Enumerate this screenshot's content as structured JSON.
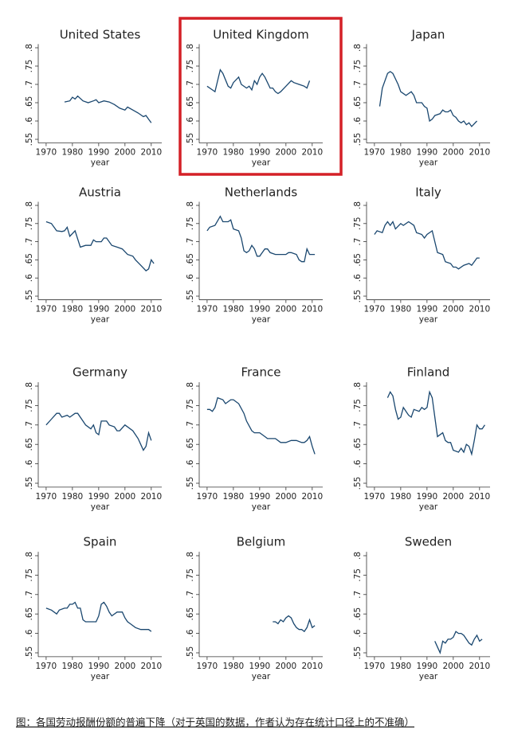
{
  "chart_data": [
    {
      "type": "line",
      "title": "United States",
      "xlabel": "year",
      "color": "#1a476f",
      "x": [
        1977,
        1979,
        1980,
        1981,
        1982,
        1984,
        1986,
        1988,
        1989,
        1990,
        1992,
        1994,
        1996,
        1998,
        2000,
        2001,
        2003,
        2005,
        2007,
        2008,
        2009,
        2010
      ],
      "values": [
        0.652,
        0.655,
        0.665,
        0.66,
        0.668,
        0.655,
        0.65,
        0.655,
        0.658,
        0.65,
        0.655,
        0.652,
        0.645,
        0.635,
        0.63,
        0.638,
        0.63,
        0.622,
        0.612,
        0.615,
        0.605,
        0.595
      ],
      "xlim": [
        1967,
        2014
      ],
      "ylim": [
        0.54,
        0.81
      ],
      "xticks": [
        1970,
        1980,
        1990,
        2000,
        2010
      ],
      "yticks": [
        {
          "value": 0.55,
          "label": ".55"
        },
        {
          "value": 0.6,
          "label": ".6"
        },
        {
          "value": 0.65,
          "label": ".65"
        },
        {
          "value": 0.7,
          "label": ".7"
        },
        {
          "value": 0.75,
          "label": ".75"
        },
        {
          "value": 0.8,
          "label": ".8"
        }
      ]
    },
    {
      "type": "line",
      "title": "United Kingdom",
      "xlabel": "year",
      "color": "#1a476f",
      "x": [
        1970,
        1972,
        1973,
        1975,
        1976,
        1978,
        1979,
        1980,
        1982,
        1983,
        1985,
        1986,
        1987,
        1988,
        1989,
        1990,
        1991,
        1992,
        1994,
        1995,
        1996,
        1997,
        1998,
        2000,
        2002,
        2003,
        2005,
        2007,
        2008,
        2009
      ],
      "values": [
        0.695,
        0.685,
        0.68,
        0.74,
        0.73,
        0.695,
        0.69,
        0.705,
        0.72,
        0.7,
        0.69,
        0.695,
        0.685,
        0.71,
        0.7,
        0.72,
        0.73,
        0.72,
        0.69,
        0.69,
        0.68,
        0.675,
        0.68,
        0.695,
        0.71,
        0.705,
        0.7,
        0.695,
        0.69,
        0.71
      ],
      "xlim": [
        1967,
        2014
      ],
      "ylim": [
        0.54,
        0.81
      ],
      "xticks": [
        1970,
        1980,
        1990,
        2000,
        2010
      ],
      "yticks": [
        {
          "value": 0.55,
          "label": ".55"
        },
        {
          "value": 0.6,
          "label": ".6"
        },
        {
          "value": 0.65,
          "label": ".65"
        },
        {
          "value": 0.7,
          "label": ".7"
        },
        {
          "value": 0.75,
          "label": ".75"
        },
        {
          "value": 0.8,
          "label": ".8"
        }
      ]
    },
    {
      "type": "line",
      "title": "Japan",
      "xlabel": "year",
      "color": "#1a476f",
      "x": [
        1972,
        1973,
        1975,
        1976,
        1977,
        1979,
        1980,
        1982,
        1983,
        1984,
        1985,
        1986,
        1988,
        1989,
        1990,
        1991,
        1992,
        1993,
        1995,
        1996,
        1997,
        1998,
        1999,
        2000,
        2001,
        2002,
        2003,
        2004,
        2005,
        2006,
        2007,
        2009
      ],
      "values": [
        0.64,
        0.69,
        0.73,
        0.735,
        0.73,
        0.7,
        0.68,
        0.67,
        0.675,
        0.68,
        0.67,
        0.65,
        0.65,
        0.64,
        0.635,
        0.6,
        0.605,
        0.615,
        0.62,
        0.63,
        0.625,
        0.625,
        0.63,
        0.615,
        0.61,
        0.6,
        0.595,
        0.6,
        0.59,
        0.595,
        0.585,
        0.6
      ],
      "xlim": [
        1967,
        2014
      ],
      "ylim": [
        0.54,
        0.81
      ],
      "xticks": [
        1970,
        1980,
        1990,
        2000,
        2010
      ],
      "yticks": [
        {
          "value": 0.55,
          "label": ".55"
        },
        {
          "value": 0.6,
          "label": ".6"
        },
        {
          "value": 0.65,
          "label": ".65"
        },
        {
          "value": 0.7,
          "label": ".7"
        },
        {
          "value": 0.75,
          "label": ".75"
        },
        {
          "value": 0.8,
          "label": ".8"
        }
      ]
    },
    {
      "type": "line",
      "title": "Austria",
      "xlabel": "year",
      "color": "#1a476f",
      "x": [
        1970,
        1972,
        1974,
        1976,
        1977,
        1978,
        1979,
        1981,
        1983,
        1985,
        1987,
        1988,
        1989,
        1991,
        1992,
        1993,
        1995,
        1997,
        1999,
        2001,
        2003,
        2004,
        2006,
        2008,
        2009,
        2010,
        2011
      ],
      "values": [
        0.755,
        0.75,
        0.73,
        0.728,
        0.73,
        0.74,
        0.715,
        0.73,
        0.685,
        0.69,
        0.69,
        0.705,
        0.7,
        0.7,
        0.71,
        0.71,
        0.69,
        0.685,
        0.68,
        0.665,
        0.66,
        0.65,
        0.635,
        0.62,
        0.625,
        0.65,
        0.64
      ],
      "xlim": [
        1967,
        2014
      ],
      "ylim": [
        0.54,
        0.81
      ],
      "xticks": [
        1970,
        1980,
        1990,
        2000,
        2010
      ],
      "yticks": [
        {
          "value": 0.55,
          "label": ".55"
        },
        {
          "value": 0.6,
          "label": ".6"
        },
        {
          "value": 0.65,
          "label": ".65"
        },
        {
          "value": 0.7,
          "label": ".7"
        },
        {
          "value": 0.75,
          "label": ".75"
        },
        {
          "value": 0.8,
          "label": ".8"
        }
      ]
    },
    {
      "type": "line",
      "title": "Netherlands",
      "xlabel": "year",
      "color": "#1a476f",
      "x": [
        1970,
        1971,
        1973,
        1975,
        1976,
        1978,
        1979,
        1980,
        1982,
        1983,
        1984,
        1985,
        1986,
        1987,
        1988,
        1989,
        1990,
        1991,
        1992,
        1993,
        1994,
        1996,
        1998,
        2000,
        2001,
        2002,
        2004,
        2005,
        2006,
        2007,
        2008,
        2009,
        2011
      ],
      "values": [
        0.73,
        0.74,
        0.745,
        0.77,
        0.755,
        0.755,
        0.76,
        0.735,
        0.73,
        0.71,
        0.675,
        0.67,
        0.675,
        0.69,
        0.68,
        0.66,
        0.66,
        0.67,
        0.68,
        0.68,
        0.67,
        0.665,
        0.665,
        0.665,
        0.67,
        0.67,
        0.665,
        0.65,
        0.645,
        0.645,
        0.68,
        0.665,
        0.665
      ],
      "xlim": [
        1967,
        2014
      ],
      "ylim": [
        0.54,
        0.81
      ],
      "xticks": [
        1970,
        1980,
        1990,
        2000,
        2010
      ],
      "yticks": [
        {
          "value": 0.55,
          "label": ".55"
        },
        {
          "value": 0.6,
          "label": ".6"
        },
        {
          "value": 0.65,
          "label": ".65"
        },
        {
          "value": 0.7,
          "label": ".7"
        },
        {
          "value": 0.75,
          "label": ".75"
        },
        {
          "value": 0.8,
          "label": ".8"
        }
      ]
    },
    {
      "type": "line",
      "title": "Italy",
      "xlabel": "year",
      "color": "#1a476f",
      "x": [
        1970,
        1971,
        1973,
        1974,
        1975,
        1976,
        1977,
        1978,
        1980,
        1981,
        1983,
        1985,
        1986,
        1988,
        1989,
        1990,
        1992,
        1993,
        1994,
        1996,
        1997,
        1999,
        2000,
        2001,
        2002,
        2004,
        2006,
        2007,
        2008,
        2009,
        2010
      ],
      "values": [
        0.72,
        0.73,
        0.725,
        0.745,
        0.755,
        0.745,
        0.755,
        0.735,
        0.75,
        0.745,
        0.755,
        0.745,
        0.725,
        0.72,
        0.71,
        0.72,
        0.73,
        0.7,
        0.67,
        0.665,
        0.645,
        0.64,
        0.63,
        0.63,
        0.625,
        0.635,
        0.64,
        0.635,
        0.645,
        0.655,
        0.655
      ],
      "xlim": [
        1967,
        2014
      ],
      "ylim": [
        0.54,
        0.81
      ],
      "xticks": [
        1970,
        1980,
        1990,
        2000,
        2010
      ],
      "yticks": [
        {
          "value": 0.55,
          "label": ".55"
        },
        {
          "value": 0.6,
          "label": ".6"
        },
        {
          "value": 0.65,
          "label": ".65"
        },
        {
          "value": 0.7,
          "label": ".7"
        },
        {
          "value": 0.75,
          "label": ".75"
        },
        {
          "value": 0.8,
          "label": ".8"
        }
      ]
    },
    {
      "type": "line",
      "title": "Germany",
      "xlabel": "year",
      "color": "#1a476f",
      "x": [
        1970,
        1972,
        1974,
        1975,
        1976,
        1978,
        1979,
        1981,
        1982,
        1984,
        1985,
        1987,
        1988,
        1989,
        1990,
        1991,
        1993,
        1994,
        1996,
        1997,
        1998,
        2000,
        2001,
        2003,
        2004,
        2005,
        2006,
        2007,
        2008,
        2009,
        2010
      ],
      "values": [
        0.7,
        0.715,
        0.73,
        0.73,
        0.72,
        0.725,
        0.72,
        0.73,
        0.73,
        0.71,
        0.7,
        0.69,
        0.7,
        0.68,
        0.675,
        0.71,
        0.71,
        0.7,
        0.695,
        0.685,
        0.685,
        0.7,
        0.695,
        0.685,
        0.675,
        0.665,
        0.65,
        0.635,
        0.645,
        0.68,
        0.66
      ],
      "xlim": [
        1967,
        2014
      ],
      "ylim": [
        0.54,
        0.81
      ],
      "xticks": [
        1970,
        1980,
        1990,
        2000,
        2010
      ],
      "yticks": [
        {
          "value": 0.55,
          "label": ".55"
        },
        {
          "value": 0.6,
          "label": ".6"
        },
        {
          "value": 0.65,
          "label": ".65"
        },
        {
          "value": 0.7,
          "label": ".7"
        },
        {
          "value": 0.75,
          "label": ".75"
        },
        {
          "value": 0.8,
          "label": ".8"
        }
      ]
    },
    {
      "type": "line",
      "title": "France",
      "xlabel": "year",
      "color": "#1a476f",
      "x": [
        1970,
        1971,
        1972,
        1973,
        1974,
        1976,
        1977,
        1979,
        1980,
        1982,
        1984,
        1985,
        1987,
        1988,
        1990,
        1992,
        1993,
        1995,
        1996,
        1998,
        2000,
        2002,
        2004,
        2006,
        2007,
        2008,
        2009,
        2010,
        2011
      ],
      "values": [
        0.74,
        0.74,
        0.735,
        0.745,
        0.77,
        0.765,
        0.755,
        0.765,
        0.765,
        0.755,
        0.73,
        0.71,
        0.685,
        0.68,
        0.68,
        0.67,
        0.665,
        0.665,
        0.665,
        0.655,
        0.655,
        0.66,
        0.66,
        0.655,
        0.655,
        0.66,
        0.67,
        0.645,
        0.625
      ],
      "xlim": [
        1967,
        2014
      ],
      "ylim": [
        0.54,
        0.81
      ],
      "xticks": [
        1970,
        1980,
        1990,
        2000,
        2010
      ],
      "yticks": [
        {
          "value": 0.55,
          "label": ".55"
        },
        {
          "value": 0.6,
          "label": ".6"
        },
        {
          "value": 0.65,
          "label": ".65"
        },
        {
          "value": 0.7,
          "label": ".7"
        },
        {
          "value": 0.75,
          "label": ".75"
        },
        {
          "value": 0.8,
          "label": ".8"
        }
      ]
    },
    {
      "type": "line",
      "title": "Finland",
      "xlabel": "year",
      "color": "#1a476f",
      "x": [
        1975,
        1976,
        1977,
        1978,
        1979,
        1980,
        1981,
        1982,
        1983,
        1984,
        1985,
        1987,
        1988,
        1989,
        1990,
        1991,
        1992,
        1993,
        1994,
        1996,
        1997,
        1998,
        1999,
        2000,
        2002,
        2003,
        2004,
        2005,
        2006,
        2007,
        2008,
        2009,
        2010,
        2011,
        2012
      ],
      "values": [
        0.77,
        0.785,
        0.775,
        0.74,
        0.715,
        0.72,
        0.745,
        0.735,
        0.725,
        0.72,
        0.74,
        0.735,
        0.745,
        0.74,
        0.745,
        0.785,
        0.77,
        0.72,
        0.67,
        0.68,
        0.66,
        0.655,
        0.655,
        0.635,
        0.63,
        0.64,
        0.63,
        0.65,
        0.645,
        0.625,
        0.66,
        0.7,
        0.69,
        0.69,
        0.7
      ],
      "xlim": [
        1967,
        2014
      ],
      "ylim": [
        0.54,
        0.81
      ],
      "xticks": [
        1970,
        1980,
        1990,
        2000,
        2010
      ],
      "yticks": [
        {
          "value": 0.55,
          "label": ".55"
        },
        {
          "value": 0.6,
          "label": ".6"
        },
        {
          "value": 0.65,
          "label": ".65"
        },
        {
          "value": 0.7,
          "label": ".7"
        },
        {
          "value": 0.75,
          "label": ".75"
        },
        {
          "value": 0.8,
          "label": ".8"
        }
      ]
    },
    {
      "type": "line",
      "title": "Spain",
      "xlabel": "year",
      "color": "#1a476f",
      "x": [
        1970,
        1972,
        1974,
        1975,
        1977,
        1978,
        1979,
        1980,
        1981,
        1982,
        1983,
        1984,
        1985,
        1987,
        1989,
        1990,
        1991,
        1992,
        1993,
        1994,
        1995,
        1997,
        1999,
        2000,
        2001,
        2002,
        2004,
        2006,
        2008,
        2009,
        2010
      ],
      "values": [
        0.665,
        0.66,
        0.65,
        0.66,
        0.665,
        0.665,
        0.675,
        0.675,
        0.68,
        0.665,
        0.665,
        0.635,
        0.63,
        0.63,
        0.63,
        0.645,
        0.675,
        0.68,
        0.67,
        0.655,
        0.645,
        0.655,
        0.655,
        0.64,
        0.63,
        0.625,
        0.615,
        0.61,
        0.61,
        0.61,
        0.605
      ],
      "xlim": [
        1967,
        2014
      ],
      "ylim": [
        0.54,
        0.81
      ],
      "xticks": [
        1970,
        1980,
        1990,
        2000,
        2010
      ],
      "yticks": [
        {
          "value": 0.55,
          "label": ".55"
        },
        {
          "value": 0.6,
          "label": ".6"
        },
        {
          "value": 0.65,
          "label": ".65"
        },
        {
          "value": 0.7,
          "label": ".7"
        },
        {
          "value": 0.75,
          "label": ".75"
        },
        {
          "value": 0.8,
          "label": ".8"
        }
      ]
    },
    {
      "type": "line",
      "title": "Belgium",
      "xlabel": "year",
      "color": "#1a476f",
      "x": [
        1995,
        1996,
        1997,
        1998,
        1999,
        2000,
        2001,
        2002,
        2003,
        2004,
        2005,
        2006,
        2007,
        2008,
        2009,
        2010,
        2011
      ],
      "values": [
        0.63,
        0.63,
        0.625,
        0.635,
        0.63,
        0.64,
        0.645,
        0.64,
        0.625,
        0.615,
        0.61,
        0.61,
        0.605,
        0.615,
        0.635,
        0.615,
        0.62
      ],
      "xlim": [
        1967,
        2014
      ],
      "ylim": [
        0.54,
        0.81
      ],
      "xticks": [
        1970,
        1980,
        1990,
        2000,
        2010
      ],
      "yticks": [
        {
          "value": 0.55,
          "label": ".55"
        },
        {
          "value": 0.6,
          "label": ".6"
        },
        {
          "value": 0.65,
          "label": ".65"
        },
        {
          "value": 0.7,
          "label": ".7"
        },
        {
          "value": 0.75,
          "label": ".75"
        },
        {
          "value": 0.8,
          "label": ".8"
        }
      ]
    },
    {
      "type": "line",
      "title": "Sweden",
      "xlabel": "year",
      "color": "#1a476f",
      "x": [
        1993,
        1994,
        1995,
        1996,
        1997,
        1998,
        1999,
        2000,
        2001,
        2002,
        2003,
        2004,
        2005,
        2006,
        2007,
        2008,
        2009,
        2010,
        2011
      ],
      "values": [
        0.58,
        0.565,
        0.55,
        0.58,
        0.575,
        0.585,
        0.585,
        0.59,
        0.605,
        0.6,
        0.6,
        0.595,
        0.585,
        0.575,
        0.57,
        0.585,
        0.595,
        0.58,
        0.585
      ],
      "xlim": [
        1967,
        2014
      ],
      "ylim": [
        0.54,
        0.81
      ],
      "xticks": [
        1970,
        1980,
        1990,
        2000,
        2010
      ],
      "yticks": [
        {
          "value": 0.55,
          "label": ".55"
        },
        {
          "value": 0.6,
          "label": ".6"
        },
        {
          "value": 0.65,
          "label": ".65"
        },
        {
          "value": 0.7,
          "label": ".7"
        },
        {
          "value": 0.75,
          "label": ".75"
        },
        {
          "value": 0.8,
          "label": ".8"
        }
      ]
    }
  ],
  "caption": "图：各国劳动报酬份额的普遍下降（对于英国的数据，作者认为存在统计口径上的不准确）"
}
